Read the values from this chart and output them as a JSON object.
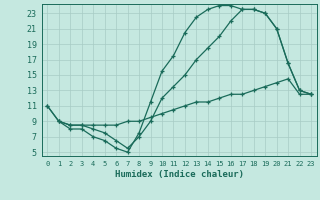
{
  "title": "",
  "xlabel": "Humidex (Indice chaleur)",
  "bg_color": "#c5e8e0",
  "line_color": "#1a6b5a",
  "grid_color": "#a8ccc5",
  "xlim": [
    -0.5,
    23.5
  ],
  "ylim": [
    4.5,
    24.2
  ],
  "yticks": [
    5,
    7,
    9,
    11,
    13,
    15,
    17,
    19,
    21,
    23
  ],
  "xticks": [
    0,
    1,
    2,
    3,
    4,
    5,
    6,
    7,
    8,
    9,
    10,
    11,
    12,
    13,
    14,
    15,
    16,
    17,
    18,
    19,
    20,
    21,
    22,
    23
  ],
  "line1_x": [
    0,
    1,
    2,
    3,
    4,
    5,
    6,
    7,
    8,
    9,
    10,
    11,
    12,
    13,
    14,
    15,
    16,
    17,
    18,
    19,
    20,
    21,
    22,
    23
  ],
  "line1_y": [
    11,
    9,
    8,
    8,
    7,
    6.5,
    5.5,
    5,
    7.5,
    11.5,
    15.5,
    17.5,
    20.5,
    22.5,
    23.5,
    24,
    24,
    23.5,
    23.5,
    23,
    21,
    16.5,
    13,
    12.5
  ],
  "line2_x": [
    0,
    1,
    2,
    3,
    4,
    5,
    6,
    7,
    8,
    9,
    10,
    11,
    12,
    13,
    14,
    15,
    16,
    17,
    18,
    19,
    20,
    21,
    22,
    23
  ],
  "line2_y": [
    11,
    9,
    8.5,
    8.5,
    8,
    7.5,
    6.5,
    5.5,
    7,
    9,
    12,
    13.5,
    15,
    17,
    18.5,
    20,
    22,
    23.5,
    23.5,
    23,
    21,
    16.5,
    13,
    12.5
  ],
  "line3_x": [
    1,
    2,
    3,
    4,
    5,
    6,
    7,
    8,
    9,
    10,
    11,
    12,
    13,
    14,
    15,
    16,
    17,
    18,
    19,
    20,
    21,
    22,
    23
  ],
  "line3_y": [
    9,
    8.5,
    8.5,
    8.5,
    8.5,
    8.5,
    9,
    9,
    9.5,
    10,
    10.5,
    11,
    11.5,
    11.5,
    12,
    12.5,
    12.5,
    13,
    13.5,
    14,
    14.5,
    12.5,
    12.5
  ]
}
